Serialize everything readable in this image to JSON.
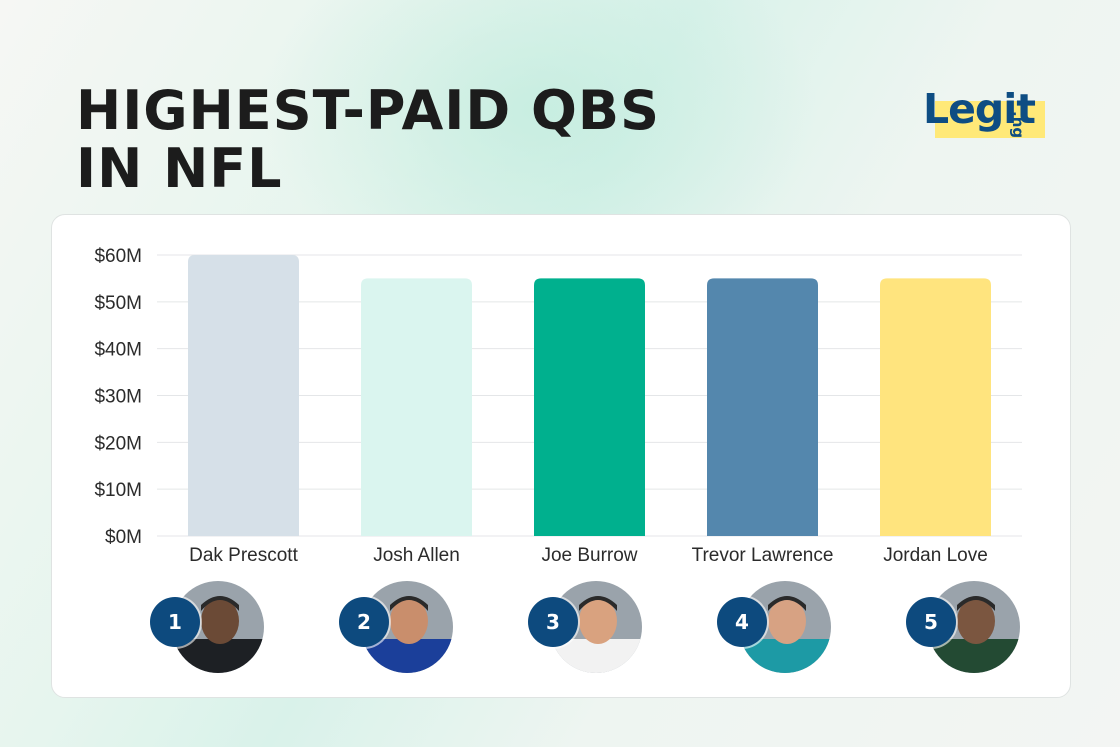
{
  "title": "HIGHEST-PAID QBS IN NFL",
  "logo": {
    "word": "Legit",
    "suffix": ".ng"
  },
  "colors": {
    "title": "#1c1c1c",
    "badge": "#0d4a7e",
    "logo": "#0e4d83",
    "logo_highlight": "#ffe978"
  },
  "chart_data": {
    "type": "bar",
    "categories": [
      "Dak Prescott",
      "Josh Allen",
      "Joe Burrow",
      "Trevor Lawrence",
      "Jordan Love"
    ],
    "values": [
      60,
      55,
      55,
      55,
      55
    ],
    "ylim": [
      0,
      60
    ],
    "yticks": [
      0,
      10,
      20,
      30,
      40,
      50,
      60
    ],
    "ytick_labels": [
      "$0M",
      "$10M",
      "$20M",
      "$30M",
      "$40M",
      "$50M",
      "$60M"
    ],
    "bar_colors": [
      "#d6e0e8",
      "#daf5ef",
      "#00b08e",
      "#5487ad",
      "#ffe47e"
    ],
    "grid": true,
    "xlabel": "",
    "ylabel": ""
  },
  "players": [
    {
      "rank": "1",
      "name": "Dak Prescott",
      "avatar": "player-photo",
      "jersey": "#1d2024",
      "skin": "#6b4a36"
    },
    {
      "rank": "2",
      "name": "Josh Allen",
      "avatar": "player-photo",
      "jersey": "#1b3f9a",
      "skin": "#c98e6c"
    },
    {
      "rank": "3",
      "name": "Joe Burrow",
      "avatar": "player-photo",
      "jersey": "#f2f2f2",
      "skin": "#d9a27f"
    },
    {
      "rank": "4",
      "name": "Trevor Lawrence",
      "avatar": "player-photo",
      "jersey": "#1d9aa5",
      "skin": "#d7a283"
    },
    {
      "rank": "5",
      "name": "Jordan Love",
      "avatar": "player-photo",
      "jersey": "#234a33",
      "skin": "#7b5640"
    }
  ]
}
